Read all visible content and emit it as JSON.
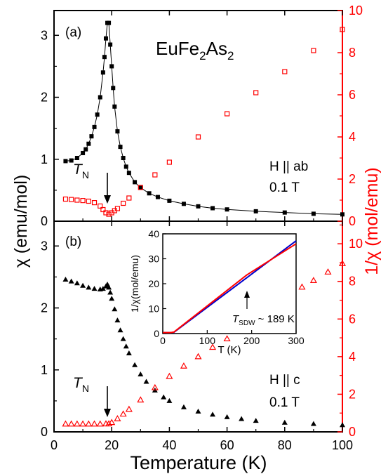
{
  "figure": {
    "xlabel": "Temperature (K)",
    "ylabel_left": "χ (emu/mol)",
    "ylabel_right": "1/χ (mol/emu)",
    "compound": {
      "base1": "EuFe",
      "sub1": "2",
      "base2": "As",
      "sub2": "2"
    },
    "colors": {
      "left_axis": "#000000",
      "right_axis": "#ff0000",
      "chi_series": "#000000",
      "inv_series": "#ff0000",
      "inset_blue": "#0000cc",
      "inset_red": "#ff0000"
    }
  },
  "chart_data": [
    {
      "type": "scatter",
      "panel": "(a)",
      "condition": "H || ab",
      "field": "0.1 T",
      "annotation": {
        "T": "T",
        "sub": "N",
        "x": 19
      },
      "xlim": [
        0,
        100
      ],
      "xticks": [
        0,
        20,
        40,
        60,
        80,
        100
      ],
      "ylim": [
        0,
        3.4
      ],
      "yticks": [
        0,
        1,
        2,
        3
      ],
      "y2lim": [
        0,
        10
      ],
      "y2ticks": [
        0,
        2,
        4,
        6,
        8,
        10
      ],
      "series": [
        {
          "axis": "left",
          "marker": "filled-square",
          "x": [
            4,
            6,
            8,
            10,
            11,
            12,
            13,
            14,
            15,
            16,
            17,
            17.5,
            18,
            18.5,
            19,
            19.5,
            20,
            20.5,
            21,
            22,
            23,
            24,
            25,
            26,
            28,
            30,
            33,
            36,
            40,
            45,
            50,
            55,
            60,
            70,
            80,
            90,
            100
          ],
          "y": [
            0.97,
            0.98,
            1.02,
            1.1,
            1.16,
            1.25,
            1.37,
            1.52,
            1.72,
            2.0,
            2.4,
            2.65,
            2.95,
            3.2,
            3.2,
            2.85,
            2.5,
            2.15,
            1.85,
            1.45,
            1.2,
            1.02,
            0.88,
            0.78,
            0.63,
            0.54,
            0.45,
            0.39,
            0.33,
            0.28,
            0.24,
            0.21,
            0.19,
            0.16,
            0.14,
            0.12,
            0.11
          ]
        },
        {
          "axis": "right",
          "marker": "open-square",
          "x": [
            4,
            6,
            8,
            10,
            12,
            14,
            16,
            17,
            18,
            19,
            20,
            21,
            22,
            24,
            26,
            30,
            35,
            40,
            50,
            60,
            70,
            80,
            90,
            100
          ],
          "y": [
            1.05,
            1.03,
            1.0,
            0.98,
            0.95,
            0.88,
            0.72,
            0.55,
            0.4,
            0.33,
            0.4,
            0.5,
            0.6,
            0.85,
            1.1,
            1.6,
            2.2,
            2.8,
            4.0,
            5.1,
            6.1,
            7.1,
            8.1,
            9.1
          ]
        }
      ]
    },
    {
      "type": "scatter",
      "panel": "(b)",
      "condition": "H || c",
      "field": "0.1 T",
      "annotation": {
        "T": "T",
        "sub": "N",
        "x": 19
      },
      "xlim": [
        0,
        100
      ],
      "xticks": [
        0,
        20,
        40,
        60,
        80,
        100
      ],
      "ylim": [
        0,
        3.4
      ],
      "yticks": [
        0,
        1,
        2,
        3
      ],
      "y2lim": [
        0,
        11.2
      ],
      "y2ticks": [
        0,
        2,
        4,
        6,
        8,
        10
      ],
      "series": [
        {
          "axis": "left",
          "marker": "filled-triangle",
          "x": [
            4,
            6,
            8,
            10,
            12,
            14,
            16,
            17,
            18,
            18.5,
            19,
            19.5,
            20,
            21,
            22,
            23,
            24,
            25,
            26,
            28,
            30,
            32,
            35,
            38,
            40,
            45,
            50,
            55,
            60,
            65,
            70,
            80,
            90,
            100
          ],
          "y": [
            2.46,
            2.43,
            2.4,
            2.36,
            2.33,
            2.31,
            2.3,
            2.31,
            2.35,
            2.38,
            2.33,
            2.25,
            2.15,
            1.98,
            1.8,
            1.64,
            1.5,
            1.38,
            1.27,
            1.08,
            0.93,
            0.81,
            0.67,
            0.56,
            0.5,
            0.4,
            0.33,
            0.28,
            0.24,
            0.21,
            0.18,
            0.15,
            0.13,
            0.11
          ]
        },
        {
          "axis": "right",
          "marker": "open-triangle",
          "x": [
            4,
            6,
            8,
            10,
            12,
            14,
            16,
            18,
            19,
            20,
            22,
            24,
            26,
            30,
            35,
            40,
            45,
            50,
            55,
            60,
            86,
            90,
            95,
            100
          ],
          "y": [
            0.42,
            0.42,
            0.42,
            0.42,
            0.42,
            0.42,
            0.42,
            0.43,
            0.43,
            0.5,
            0.7,
            0.95,
            1.2,
            1.7,
            2.35,
            2.95,
            3.5,
            4.0,
            4.5,
            4.95,
            7.7,
            8.05,
            8.5,
            8.95
          ]
        }
      ],
      "inset": {
        "type": "line",
        "xlabel": "T (K)",
        "ylabel": "1/χ(mol/emu)",
        "xlim": [
          0,
          300
        ],
        "xticks": [
          0,
          100,
          200,
          300
        ],
        "ylim": [
          0,
          40
        ],
        "yticks": [
          0,
          10,
          20,
          30,
          40
        ],
        "annotation": {
          "T": "T",
          "sub": "SDW",
          "text": " ~ 189 K",
          "x": 189
        },
        "series": [
          {
            "color": "blue",
            "x": [
              0,
              18,
              25,
              300
            ],
            "y": [
              0.4,
              0.4,
              0.5,
              37.2
            ]
          },
          {
            "color": "red",
            "x": [
              0,
              18,
              25,
              189,
              300
            ],
            "y": [
              0.4,
              0.4,
              0.6,
              23.5,
              36.0
            ]
          }
        ]
      }
    }
  ]
}
